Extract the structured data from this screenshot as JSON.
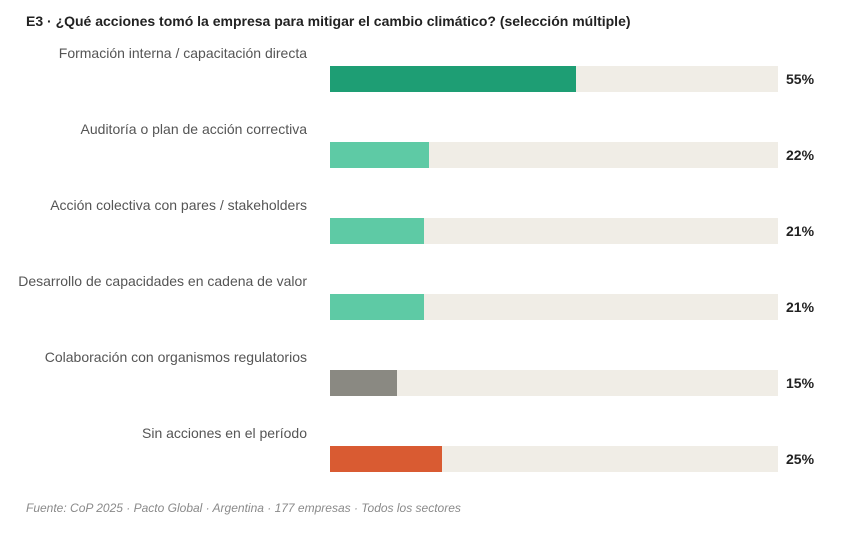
{
  "chart_data": {
    "type": "bar",
    "orientation": "horizontal",
    "title": "E3 · ¿Qué acciones tomó la empresa para mitigar el cambio climático? (selección múltiple)",
    "xlabel": "",
    "ylabel": "",
    "xlim": [
      0,
      100
    ],
    "unit": "%",
    "grid": false,
    "categories": [
      "Formación interna / capacitación directa",
      "Auditoría o plan de acción correctiva",
      "Acción colectiva con pares / stakeholders",
      "Desarrollo de capacidades en cadena de valor",
      "Colaboración con organismos regulatorios",
      "Sin acciones en el período"
    ],
    "values": [
      55,
      22,
      21,
      21,
      15,
      25
    ],
    "value_labels": [
      "55%",
      "22%",
      "21%",
      "21%",
      "15%",
      "25%"
    ],
    "colors": [
      "#1e9e74",
      "#5ecaa5",
      "#5ecaa5",
      "#5ecaa5",
      "#8a8982",
      "#d95b32"
    ],
    "track_color": "#f0ede6",
    "source": "Fuente: CoP 2025 · Pacto Global · Argentina · 177 empresas · Todos los sectores"
  }
}
